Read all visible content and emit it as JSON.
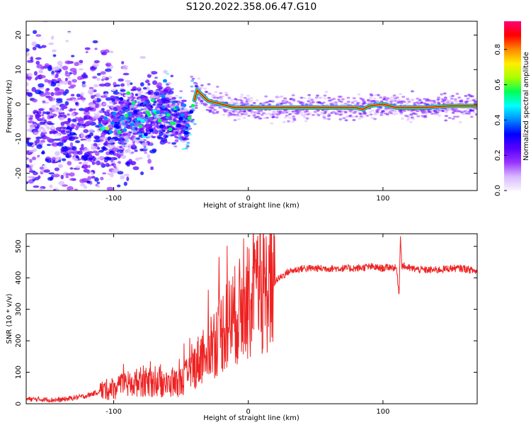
{
  "title": "S120.2022.358.06.47.G10",
  "colors": {
    "snr_line": "#ee2222",
    "colormap": [
      "#f8f4ff",
      "#d8b8ff",
      "#9933ff",
      "#5500ff",
      "#0000ff",
      "#0088ff",
      "#00ffff",
      "#00ff55",
      "#aaff00",
      "#ffee00",
      "#ff8800",
      "#ff0000",
      "#ff0077"
    ]
  },
  "chart_data": [
    {
      "type": "heatmap",
      "xlabel": "Height of straight line (km)",
      "ylabel": "Frequency (Hz)",
      "xlim": [
        -165,
        170
      ],
      "ylim": [
        -25,
        24
      ],
      "xticks": [
        -100,
        0,
        100
      ],
      "yticks": [
        -20,
        -10,
        0,
        10,
        20
      ],
      "grid": false,
      "colorbar": {
        "label": "Normalized spectral amplitude",
        "range": [
          0,
          0.96
        ],
        "ticks": [
          0.0,
          0.2,
          0.4,
          0.6,
          0.8
        ]
      },
      "ridge": {
        "x": [
          -120,
          -100,
          -80,
          -60,
          -45,
          -38,
          -30,
          -20,
          -10,
          0,
          10,
          20,
          40,
          60,
          80,
          85,
          90,
          100,
          110,
          130,
          150,
          170
        ],
        "y": [
          -7,
          -6,
          -4,
          -2,
          -6,
          4,
          1,
          0,
          -1,
          -1,
          -1,
          -1,
          -1,
          -1,
          -1,
          -1.5,
          -0.5,
          0,
          -1,
          -1,
          -0.5,
          -0.5
        ]
      }
    },
    {
      "type": "line",
      "xlabel": "Height of straight line (km)",
      "ylabel": "SNR (10 * v/v)",
      "xlim": [
        -165,
        170
      ],
      "ylim": [
        0,
        540
      ],
      "xticks": [
        -100,
        0,
        100
      ],
      "yticks": [
        0,
        100,
        200,
        300,
        400,
        500
      ],
      "grid": false,
      "series": [
        {
          "x": [
            -165,
            -140,
            -120,
            -110,
            -100,
            -90,
            -80,
            -70,
            -60,
            -50,
            -45,
            -40,
            -35,
            -30,
            -25,
            -20,
            -10,
            0,
            10,
            20,
            30,
            40,
            50,
            60,
            70,
            80,
            90,
            100,
            105,
            110,
            112,
            113,
            114,
            120,
            130,
            140,
            150,
            160,
            170
          ],
          "y": [
            15,
            12,
            25,
            40,
            50,
            60,
            70,
            65,
            60,
            70,
            90,
            120,
            150,
            180,
            200,
            230,
            280,
            320,
            350,
            390,
            420,
            430,
            430,
            430,
            430,
            430,
            435,
            430,
            435,
            430,
            350,
            540,
            440,
            430,
            425,
            425,
            430,
            430,
            420
          ]
        }
      ]
    }
  ]
}
